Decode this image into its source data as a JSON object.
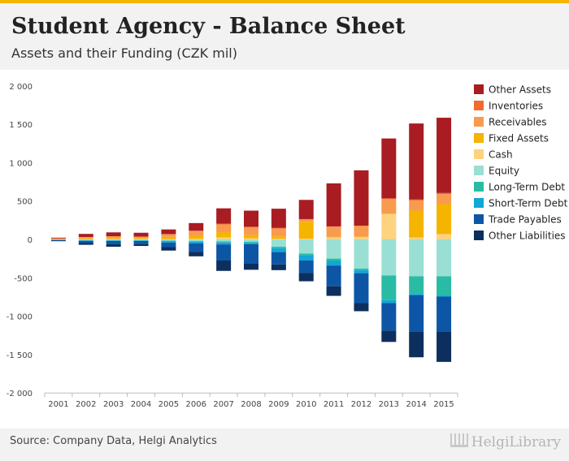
{
  "header": {
    "title": "Student Agency - Balance Sheet",
    "subtitle": "Assets and their Funding (CZK mil)"
  },
  "footer": {
    "source": "Source: Company Data, Helgi Analytics",
    "logo": "HelgiLibrary"
  },
  "chart_data": {
    "type": "bar",
    "stacked": true,
    "title": "Student Agency - Balance Sheet",
    "subtitle": "Assets and their Funding (CZK mil)",
    "xlabel": "",
    "ylabel": "",
    "ylim": [
      -2000,
      2000
    ],
    "yticks": [
      2000,
      1500,
      1000,
      500,
      0,
      -500,
      -1000,
      -1500,
      -2000
    ],
    "ytick_labels": [
      "2 000",
      "1 500",
      "1 000",
      "500",
      "0",
      "-500",
      "-1 000",
      "-1 500",
      "-2 000"
    ],
    "grid": false,
    "legend_position": "right",
    "categories": [
      "2001",
      "2002",
      "2003",
      "2004",
      "2005",
      "2006",
      "2007",
      "2008",
      "2009",
      "2010",
      "2011",
      "2012",
      "2013",
      "2014",
      "2015"
    ],
    "series": [
      {
        "name": "Cash",
        "side": "assets",
        "color": "#fdd380",
        "values": [
          2,
          3,
          4,
          4,
          5,
          8,
          25,
          15,
          10,
          10,
          25,
          30,
          330,
          25,
          70
        ]
      },
      {
        "name": "Fixed Assets",
        "side": "assets",
        "color": "#f5b400",
        "values": [
          5,
          12,
          15,
          15,
          30,
          40,
          70,
          40,
          30,
          220,
          10,
          5,
          5,
          350,
          390
        ]
      },
      {
        "name": "Receivables",
        "side": "assets",
        "color": "#f89b4e",
        "values": [
          5,
          15,
          20,
          15,
          30,
          60,
          100,
          100,
          100,
          30,
          130,
          140,
          190,
          130,
          130
        ]
      },
      {
        "name": "Inventories",
        "side": "assets",
        "color": "#f26b2d",
        "values": [
          1,
          2,
          3,
          3,
          5,
          5,
          10,
          10,
          10,
          5,
          5,
          5,
          10,
          15,
          15
        ]
      },
      {
        "name": "Other Assets",
        "side": "assets",
        "color": "#a81c22",
        "values": [
          10,
          40,
          50,
          50,
          60,
          100,
          200,
          210,
          250,
          250,
          560,
          720,
          780,
          990,
          980
        ]
      },
      {
        "name": "Equity",
        "side": "funding",
        "color": "#9adfd3",
        "values": [
          3,
          8,
          10,
          10,
          15,
          20,
          25,
          30,
          95,
          185,
          250,
          380,
          470,
          480,
          480
        ]
      },
      {
        "name": "Long-Term Debt",
        "side": "funding",
        "color": "#2abba5",
        "values": [
          2,
          5,
          5,
          5,
          5,
          10,
          15,
          15,
          20,
          20,
          30,
          20,
          320,
          230,
          250
        ]
      },
      {
        "name": "Short-Term Debt",
        "side": "funding",
        "color": "#11a7d6",
        "values": [
          2,
          5,
          5,
          5,
          20,
          20,
          25,
          15,
          50,
          70,
          60,
          40,
          40,
          15,
          15
        ]
      },
      {
        "name": "Trade Payables",
        "side": "funding",
        "color": "#0d56a6",
        "values": [
          8,
          25,
          40,
          40,
          60,
          110,
          210,
          250,
          160,
          160,
          270,
          390,
          360,
          480,
          460
        ]
      },
      {
        "name": "Other Liabilities",
        "side": "funding",
        "color": "#0c2f5e",
        "values": [
          8,
          27,
          35,
          25,
          45,
          60,
          135,
          85,
          75,
          110,
          125,
          105,
          145,
          330,
          390
        ]
      }
    ],
    "legend": [
      "Other Assets",
      "Inventories",
      "Receivables",
      "Fixed Assets",
      "Cash",
      "Equity",
      "Long-Term Debt",
      "Short-Term Debt",
      "Trade Payables",
      "Other Liabilities"
    ]
  }
}
